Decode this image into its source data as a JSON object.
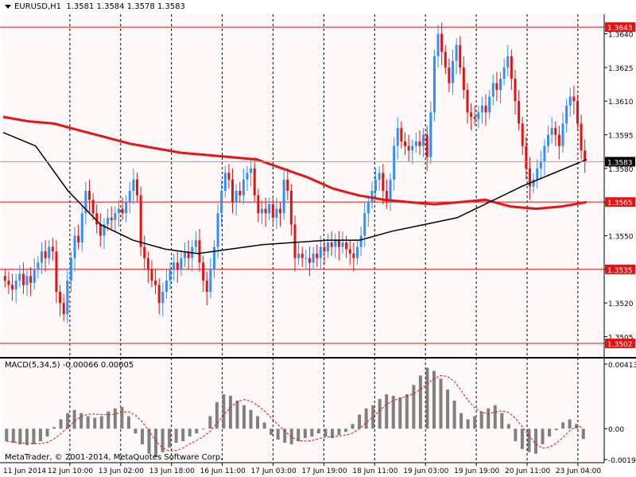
{
  "header": {
    "symbol": "EURUSD,H1",
    "ohlc": "1.3581 1.3584 1.3578 1.3583"
  },
  "macd_header": "MACD(5,34,5) -0.00066 0.00005",
  "copyright": "MetaTrader, © 2001-2014, MetaQuotes Software Corp.",
  "colors": {
    "background": "#fff8f8",
    "bull": "#2f8fff",
    "bear": "#e81010",
    "ma_slow": "#e61414",
    "ma_fast": "#000000",
    "hline": "#e81010",
    "macd_bar": "#808080",
    "macd_signal": "#e81010",
    "grid": "#000000"
  },
  "chart_data": {
    "type": "candlestick",
    "price_axis": {
      "min": 1.3497,
      "max": 1.3648,
      "ticks": [
        "1.3640",
        "1.3625",
        "1.3610",
        "1.3595",
        "1.3580",
        "1.3565",
        "1.3550",
        "1.3535",
        "1.3520",
        "1.3505"
      ]
    },
    "horizontal_lines": [
      {
        "value": 1.3643,
        "label": "1.3643"
      },
      {
        "value": 1.3565,
        "label": "1.3565"
      },
      {
        "value": 1.3535,
        "label": "1.3535"
      },
      {
        "value": 1.3502,
        "label": "1.3502"
      }
    ],
    "current_price": {
      "value": 1.3583,
      "label": "1.3583"
    },
    "time_labels": [
      "11 Jun 2014",
      "12 Jun 10:00",
      "13 Jun 02:00",
      "13 Jun 18:00",
      "16 Jun 11:00",
      "17 Jun 03:00",
      "17 Jun 19:00",
      "18 Jun 11:00",
      "19 Jun 03:00",
      "19 Jun 19:00",
      "20 Jun 11:00",
      "23 Jun 04:00"
    ],
    "closes": [
      1.353,
      1.3528,
      1.3526,
      1.353,
      1.3533,
      1.3528,
      1.3532,
      1.3529,
      1.3535,
      1.3538,
      1.3543,
      1.354,
      1.3545,
      1.3543,
      1.3525,
      1.352,
      1.3515,
      1.353,
      1.354,
      1.355,
      1.3547,
      1.356,
      1.357,
      1.3566,
      1.356,
      1.3555,
      1.355,
      1.3555,
      1.3558,
      1.3557,
      1.356,
      1.3562,
      1.356,
      1.3565,
      1.357,
      1.3575,
      1.3568,
      1.3545,
      1.354,
      1.3535,
      1.353,
      1.3528,
      1.352,
      1.3525,
      1.353,
      1.3535,
      1.3538,
      1.3535,
      1.354,
      1.3543,
      1.354,
      1.3545,
      1.3548,
      1.3538,
      1.353,
      1.3525,
      1.3535,
      1.3545,
      1.356,
      1.357,
      1.3578,
      1.3575,
      1.3565,
      1.357,
      1.3568,
      1.3575,
      1.3578,
      1.358,
      1.3568,
      1.356,
      1.3562,
      1.356,
      1.3564,
      1.3558,
      1.3562,
      1.356,
      1.3575,
      1.357,
      1.3555,
      1.354,
      1.3542,
      1.354,
      1.354,
      1.3538,
      1.3542,
      1.354,
      1.3545,
      1.3543,
      1.3547,
      1.3545,
      1.3548,
      1.3545,
      1.3547,
      1.3544,
      1.3542,
      1.354,
      1.3545,
      1.355,
      1.356,
      1.3565,
      1.357,
      1.3575,
      1.3578,
      1.357,
      1.3565,
      1.3575,
      1.359,
      1.3598,
      1.3592,
      1.359,
      1.3588,
      1.359,
      1.3592,
      1.359,
      1.3595,
      1.3585,
      1.3605,
      1.363,
      1.364,
      1.3632,
      1.3625,
      1.3618,
      1.3628,
      1.3635,
      1.3625,
      1.3615,
      1.3605,
      1.3603,
      1.3602,
      1.3605,
      1.3608,
      1.3605,
      1.3612,
      1.3618,
      1.3615,
      1.362,
      1.3625,
      1.363,
      1.362,
      1.361,
      1.36,
      1.359,
      1.358,
      1.3572,
      1.3575,
      1.358,
      1.3583,
      1.359,
      1.3595,
      1.3598,
      1.3595,
      1.359,
      1.36,
      1.3608,
      1.3612,
      1.361,
      1.36,
      1.3588,
      1.3583
    ],
    "ma_slow": [
      1.3603,
      1.3601,
      1.36,
      1.3597,
      1.3594,
      1.3591,
      1.3589,
      1.3587,
      1.3586,
      1.3585,
      1.3584,
      1.358,
      1.3576,
      1.3571,
      1.3568,
      1.3566,
      1.3565,
      1.3564,
      1.3565,
      1.3566,
      1.3563,
      1.3562,
      1.3563,
      1.3565
    ],
    "ma_fast": [
      1.3596,
      1.359,
      1.357,
      1.3555,
      1.3548,
      1.3544,
      1.3542,
      1.3544,
      1.3546,
      1.3547,
      1.3548,
      1.3548,
      1.3552,
      1.3555,
      1.3558,
      1.3565,
      1.3572,
      1.3578,
      1.3584
    ],
    "macd": {
      "axis": {
        "min": -0.00197,
        "max": 0.00413,
        "ticks": [
          "0.00413",
          "0.00",
          "-0.00197"
        ]
      },
      "values": [
        -0.0008,
        -0.0009,
        -0.001,
        -0.00105,
        -0.001,
        -0.0008,
        -0.0005,
        0.0001,
        0.0006,
        0.001,
        0.0012,
        0.001,
        0.0008,
        0.0007,
        0.0008,
        0.0011,
        0.0013,
        0.0014,
        0.0008,
        -0.0003,
        -0.001,
        -0.0016,
        -0.0018,
        -0.0015,
        -0.0012,
        -0.0009,
        -0.0008,
        -0.0005,
        -0.0003,
        0.0,
        0.0008,
        0.0017,
        0.0022,
        0.0021,
        0.0018,
        0.0015,
        0.0012,
        0.0008,
        0.0004,
        -0.0004,
        -0.0007,
        -0.0009,
        -0.001,
        -0.0008,
        -0.0006,
        -0.0005,
        -0.0003,
        -0.0005,
        -0.0006,
        -0.0004,
        -0.0002,
        0.0003,
        0.0009,
        0.0013,
        0.0015,
        0.0019,
        0.0022,
        0.0021,
        0.002,
        0.0022,
        0.0028,
        0.0034,
        0.0039,
        0.0037,
        0.0032,
        0.0025,
        0.0018,
        0.001,
        0.0006,
        0.0008,
        0.0011,
        0.0013,
        0.0015,
        0.001,
        0.0003,
        -0.0008,
        -0.0013,
        -0.0015,
        -0.0016,
        -0.001,
        -0.0005,
        -0.0001,
        0.0004,
        0.0006,
        0.0003,
        -0.00066
      ],
      "signal_scale": 1
    }
  }
}
